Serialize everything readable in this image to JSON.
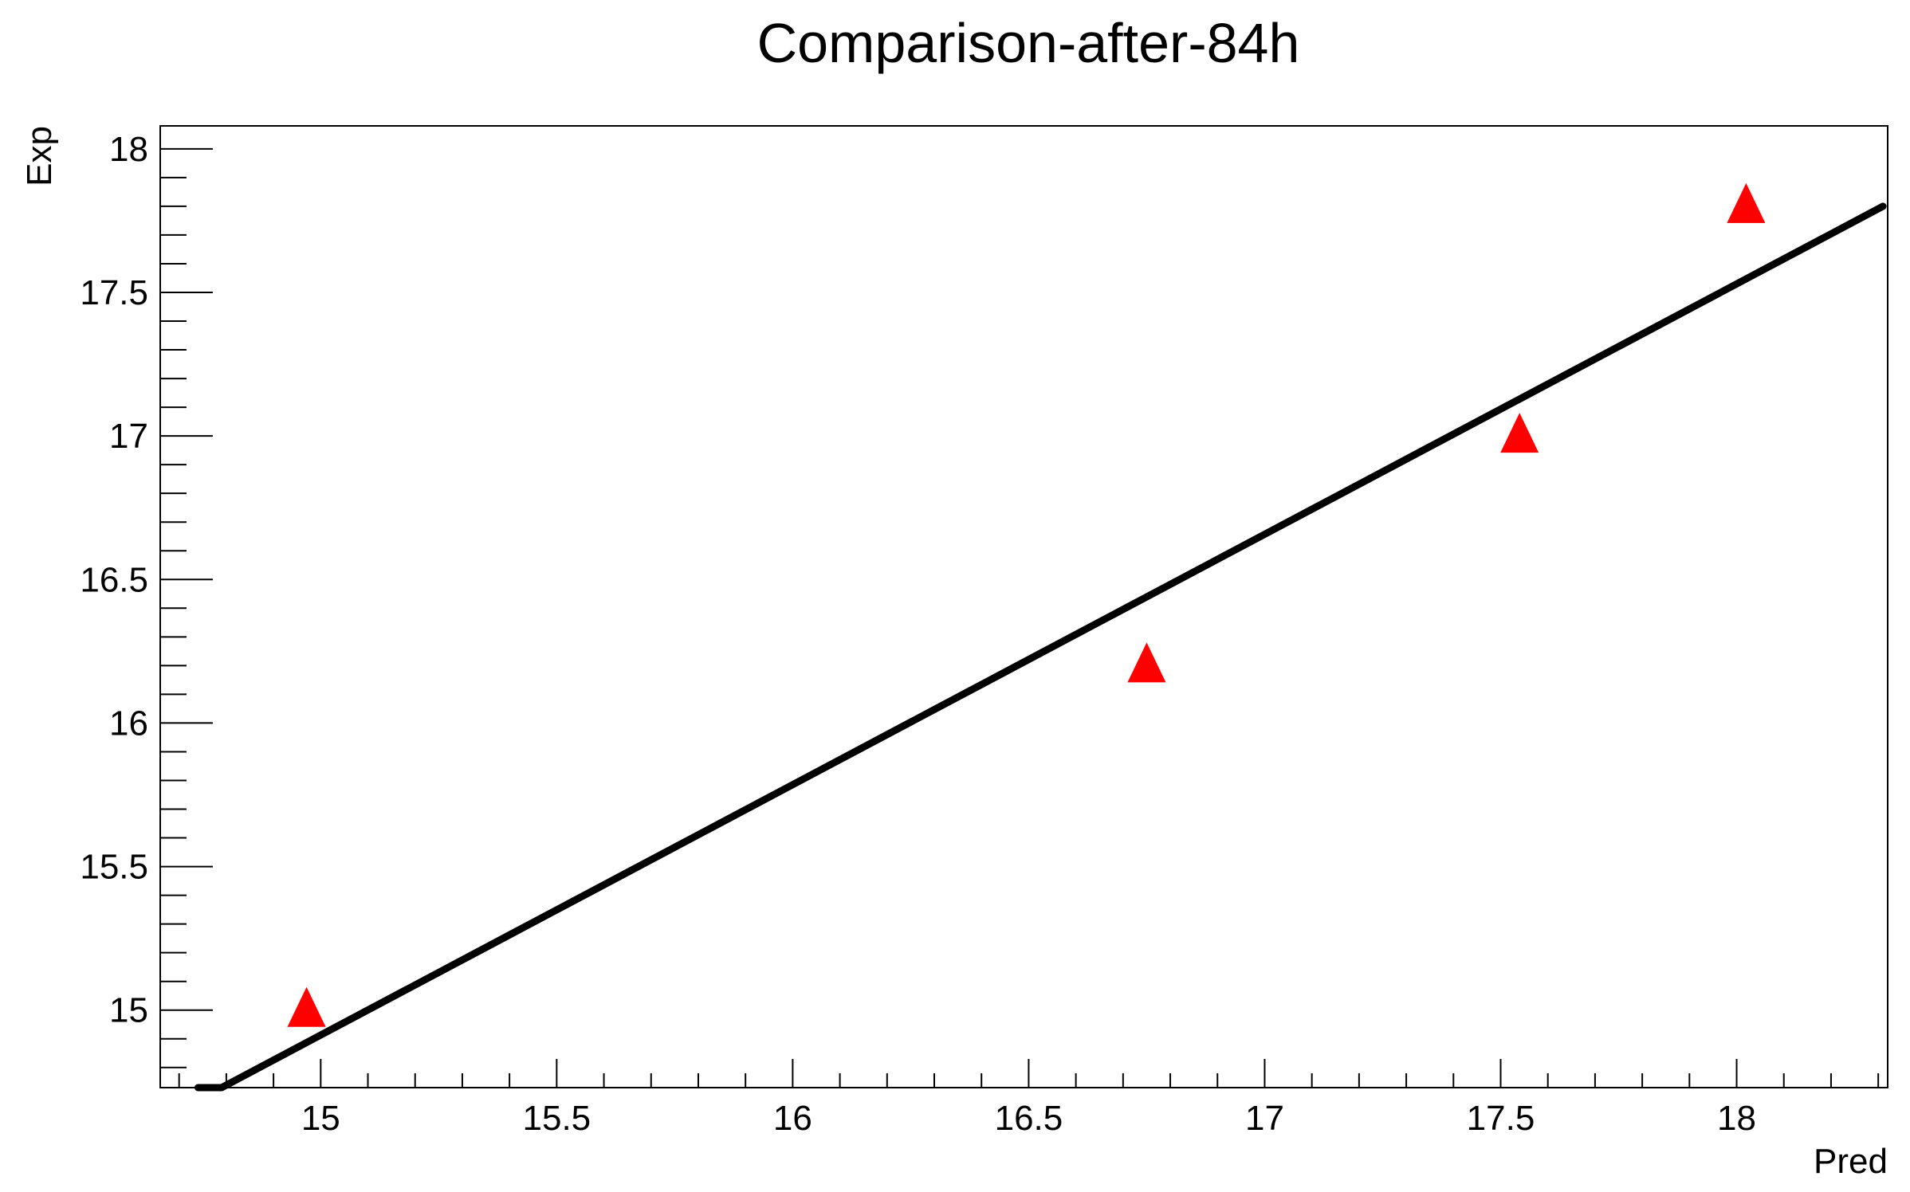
{
  "chart_data": {
    "type": "scatter",
    "title": "Comparison-after-84h",
    "xlabel": "Pred",
    "ylabel": "Exp",
    "xlim": [
      14.66,
      18.32
    ],
    "ylim": [
      14.73,
      18.08
    ],
    "x_ticks": [
      {
        "value": 15,
        "label": "15"
      },
      {
        "value": 15.5,
        "label": "15.5"
      },
      {
        "value": 16,
        "label": "16"
      },
      {
        "value": 16.5,
        "label": "16.5"
      },
      {
        "value": 17,
        "label": "17"
      },
      {
        "value": 17.5,
        "label": "17.5"
      },
      {
        "value": 18,
        "label": "18"
      }
    ],
    "y_ticks": [
      {
        "value": 15,
        "label": "15"
      },
      {
        "value": 15.5,
        "label": "15.5"
      },
      {
        "value": 16,
        "label": "16"
      },
      {
        "value": 16.5,
        "label": "16.5"
      },
      {
        "value": 17,
        "label": "17"
      },
      {
        "value": 17.5,
        "label": "17.5"
      },
      {
        "value": 18,
        "label": "18"
      }
    ],
    "series": [
      {
        "kind": "points",
        "marker": "triangle-up",
        "color": "#ff0000",
        "points": [
          {
            "x": 14.97,
            "y": 15.0
          },
          {
            "x": 16.75,
            "y": 16.2
          },
          {
            "x": 17.54,
            "y": 17.0
          },
          {
            "x": 18.02,
            "y": 17.8
          }
        ]
      },
      {
        "kind": "line",
        "color": "#000000",
        "points": [
          {
            "x": 14.74,
            "y": 14.73
          },
          {
            "x": 14.79,
            "y": 14.73
          },
          {
            "x": 18.31,
            "y": 17.8
          }
        ]
      }
    ],
    "grid": false,
    "legend": "none"
  }
}
